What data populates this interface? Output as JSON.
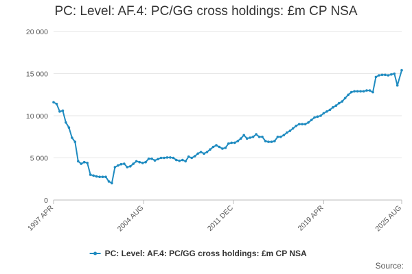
{
  "chart_data": {
    "type": "line",
    "title": "PC: Level: AF.4: PC/GG cross holdings: £m CP NSA",
    "xlabel": "",
    "ylabel": "",
    "ylim": [
      0,
      20000
    ],
    "yticks": [
      0,
      5000,
      10000,
      15000,
      20000
    ],
    "ytick_labels": [
      "0",
      "5 000",
      "10 000",
      "15 000",
      "20 000"
    ],
    "xlim": [
      1997.25,
      2025.6
    ],
    "xticks": [
      1997.25,
      2004.6,
      2011.9,
      2019.25,
      2025.6
    ],
    "xtick_labels": [
      "1997 APR",
      "2004 AUG",
      "2011 DEC",
      "2019 APR",
      "2025 AUG"
    ],
    "color": "#1f8bc0",
    "grid": true,
    "legend_position": "bottom-center",
    "series": [
      {
        "name": "PC: Level: AF.4: PC/GG cross holdings: £m CP NSA",
        "x": [
          1997.25,
          1997.5,
          1997.75,
          1998.0,
          1998.25,
          1998.5,
          1998.75,
          1999.0,
          1999.25,
          1999.5,
          1999.75,
          2000.0,
          2000.25,
          2000.5,
          2000.75,
          2001.0,
          2001.25,
          2001.5,
          2001.75,
          2002.0,
          2002.25,
          2002.5,
          2002.75,
          2003.0,
          2003.25,
          2003.5,
          2003.75,
          2004.0,
          2004.25,
          2004.5,
          2004.75,
          2005.0,
          2005.25,
          2005.5,
          2005.75,
          2006.0,
          2006.25,
          2006.5,
          2006.75,
          2007.0,
          2007.25,
          2007.5,
          2007.75,
          2008.0,
          2008.25,
          2008.5,
          2008.75,
          2009.0,
          2009.25,
          2009.5,
          2009.75,
          2010.0,
          2010.25,
          2010.5,
          2010.75,
          2011.0,
          2011.25,
          2011.5,
          2011.75,
          2012.0,
          2012.25,
          2012.5,
          2012.75,
          2013.0,
          2013.25,
          2013.5,
          2013.75,
          2014.0,
          2014.25,
          2014.5,
          2014.75,
          2015.0,
          2015.25,
          2015.5,
          2015.75,
          2016.0,
          2016.25,
          2016.5,
          2016.75,
          2017.0,
          2017.25,
          2017.5,
          2017.75,
          2018.0,
          2018.25,
          2018.5,
          2018.75,
          2019.0,
          2019.25,
          2019.5,
          2019.75,
          2020.0,
          2020.25,
          2020.5,
          2020.75,
          2021.0,
          2021.25,
          2021.5,
          2021.75,
          2022.0,
          2022.25,
          2022.5,
          2022.75,
          2023.0,
          2023.25,
          2023.5,
          2023.75,
          2024.0,
          2024.25,
          2024.5,
          2024.75,
          2025.0,
          2025.25,
          2025.6
        ],
        "values": [
          11600,
          11400,
          10500,
          10600,
          9200,
          8600,
          7400,
          6900,
          4600,
          4300,
          4500,
          4400,
          3000,
          2900,
          2800,
          2750,
          2750,
          2750,
          2200,
          2000,
          3900,
          4100,
          4250,
          4300,
          3900,
          4000,
          4300,
          4600,
          4500,
          4400,
          4500,
          4900,
          4900,
          4700,
          4850,
          5000,
          5000,
          5050,
          5050,
          5000,
          4750,
          4650,
          4750,
          4600,
          5150,
          5000,
          5200,
          5500,
          5700,
          5500,
          5700,
          6000,
          6300,
          6500,
          6300,
          6100,
          6200,
          6700,
          6800,
          6800,
          7000,
          7300,
          7700,
          7300,
          7400,
          7500,
          7800,
          7500,
          7500,
          7000,
          6900,
          6900,
          7000,
          7500,
          7500,
          7700,
          8000,
          8200,
          8500,
          8800,
          9000,
          9000,
          9000,
          9200,
          9500,
          9800,
          9900,
          10000,
          10300,
          10500,
          10700,
          11000,
          11200,
          11500,
          11700,
          12100,
          12500,
          12800,
          12900,
          12900,
          12900,
          12900,
          13000,
          13000,
          12800,
          14600,
          14800,
          14850,
          14850,
          14800,
          14900,
          15000,
          13600,
          15400
        ]
      }
    ]
  },
  "credits": "Source:"
}
